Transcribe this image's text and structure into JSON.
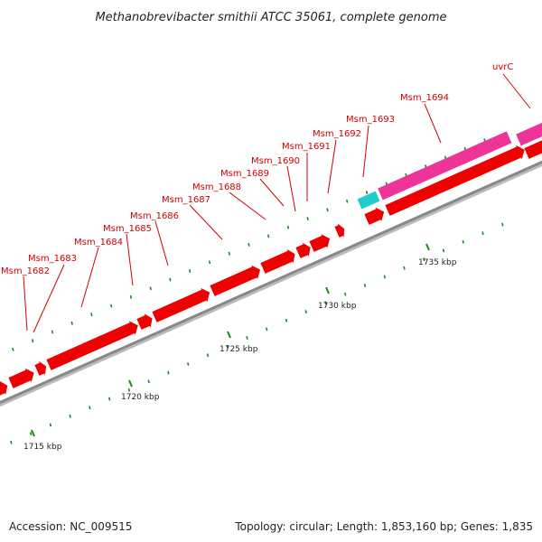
{
  "title": "Methanobrevibacter smithii ATCC 35061, complete genome",
  "footer": {
    "accession": "Accession: NC_009515",
    "summary": "Topology: circular; Length: 1,853,160 bp; Genes: 1,835"
  },
  "colors": {
    "cds": "#ee0000",
    "rna": "#22cccc",
    "gene": "#ee3399",
    "backbone": "#888888",
    "tick": "#1a8a1a",
    "label": "#d00000"
  },
  "ticks": [
    {
      "kbp": 1715,
      "label": "1715 kbp"
    },
    {
      "kbp": 1720,
      "label": "1720 kbp"
    },
    {
      "kbp": 1725,
      "label": "1725 kbp"
    },
    {
      "kbp": 1730,
      "label": "1730 kbp"
    },
    {
      "kbp": 1735,
      "label": "1735 kbp"
    }
  ],
  "gene_labels": [
    "Msm_1682",
    "Msm_1683",
    "Msm_1684",
    "Msm_1685",
    "Msm_1686",
    "Msm_1687",
    "Msm_1688",
    "Msm_1689",
    "Msm_1690",
    "Msm_1691",
    "Msm_1692",
    "Msm_1693",
    "Msm_1694",
    "uvrC"
  ]
}
